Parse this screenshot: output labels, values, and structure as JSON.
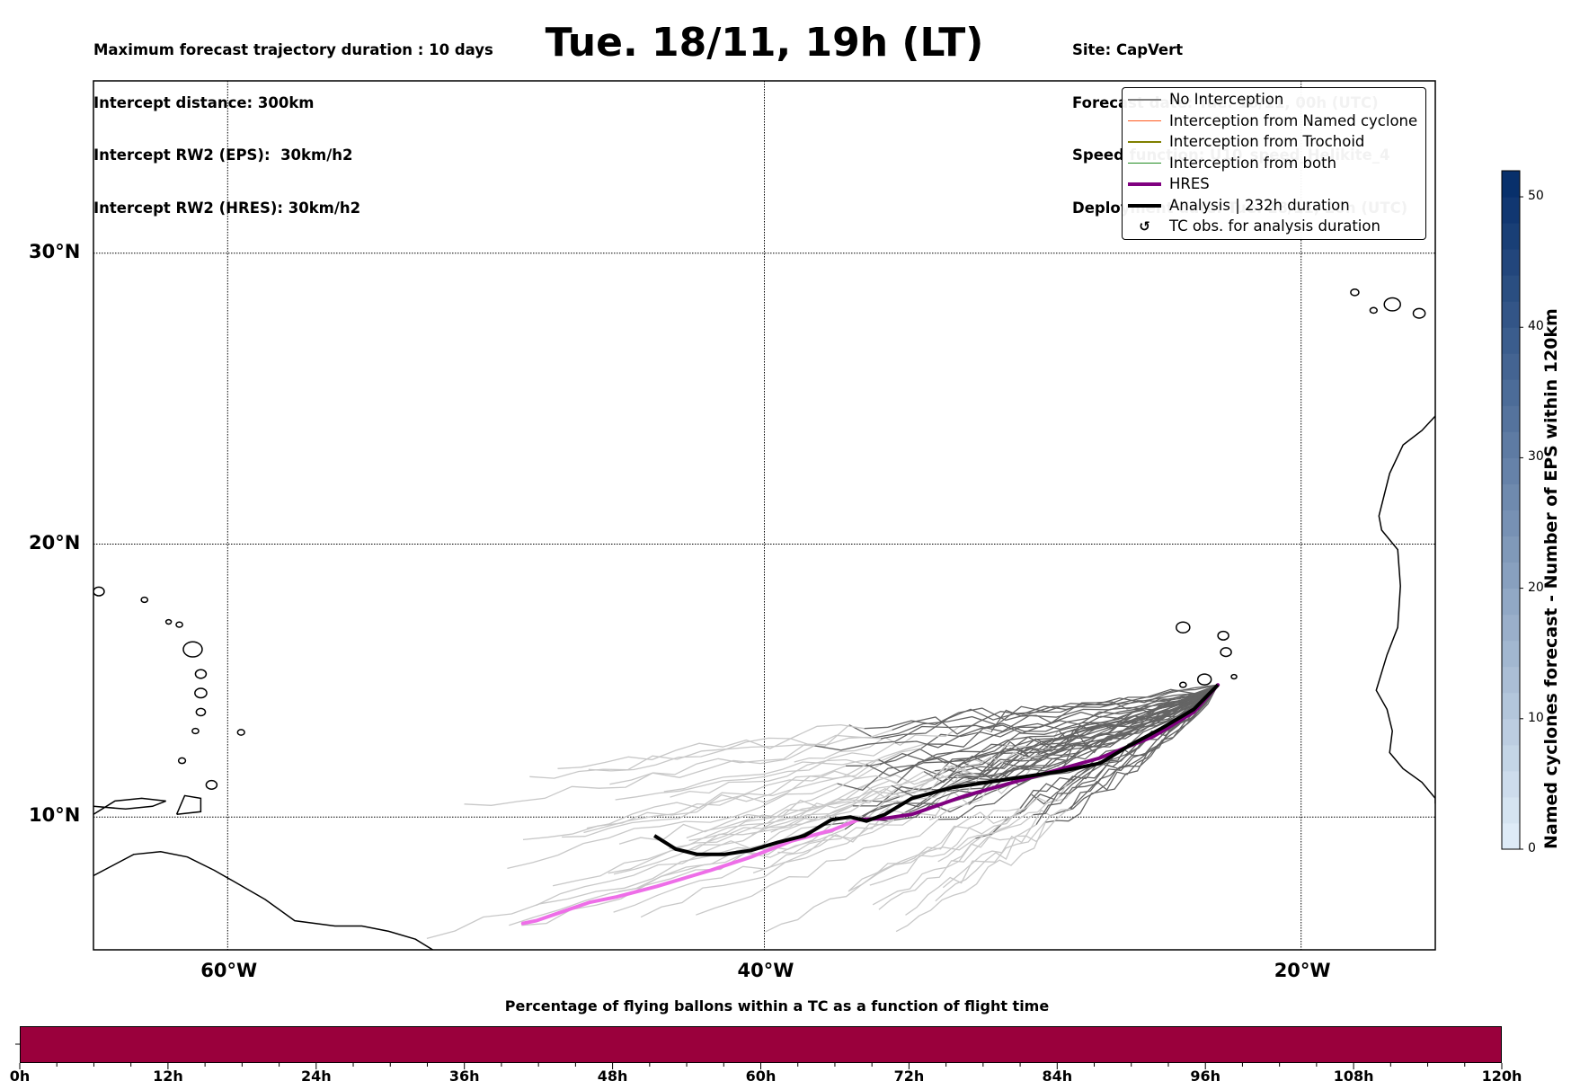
{
  "header": {
    "left_lines": [
      "Maximum forecast trajectory duration : 10 days",
      "Intercept distance: 300km",
      "Intercept RW2 (EPS):  30km/h2",
      "Intercept RW2 (HRES): 30km/h2"
    ],
    "title": "Tue. 18/11, 19h (LT)",
    "right_lines": [
      "Site: CapVert",
      "Forecast date: Tue. 18/11, 00h (UTC)",
      "Speed function: U10_speed_Helikite_4",
      "Deployment date: Tue. 18/11, 20h (UTC)"
    ]
  },
  "map": {
    "lon_range": [
      -65,
      -15
    ],
    "lat_range": [
      5.0,
      35.5
    ],
    "lon_ticks": [
      {
        "value": -60,
        "label": "60°W"
      },
      {
        "value": -40,
        "label": "40°W"
      },
      {
        "value": -20,
        "label": "20°W"
      }
    ],
    "lat_ticks": [
      {
        "value": 30,
        "label": "30°N"
      },
      {
        "value": 20,
        "label": "20°N"
      },
      {
        "value": 10,
        "label": "10°N"
      }
    ],
    "colors": {
      "no_interception": "#808080",
      "eps_light": "#c8c8c8",
      "eps_dark": "#646464",
      "named_cyclone": "#ff5a1e",
      "trochoid": "#808000",
      "both": "#228b22",
      "hres": "#800080",
      "hres_light": "#ee6ee8",
      "analysis": "#000000"
    },
    "launch_point": {
      "lon": -23.1,
      "lat": 14.9
    },
    "hres_track": [
      [
        -23.1,
        14.9
      ],
      [
        -24,
        13.9
      ],
      [
        -25.5,
        13.0
      ],
      [
        -27.5,
        12.2
      ],
      [
        -30,
        11.5
      ],
      [
        -32.5,
        10.8
      ],
      [
        -34.5,
        10.1
      ],
      [
        -35.5,
        9.95
      ],
      [
        -36.5,
        9.9
      ],
      [
        -37.5,
        9.5
      ],
      [
        -39,
        9.1
      ],
      [
        -40.5,
        8.5
      ],
      [
        -42,
        8.0
      ],
      [
        -44,
        7.4
      ],
      [
        -45.5,
        7.0
      ],
      [
        -46.5,
        6.8
      ],
      [
        -47.5,
        6.45
      ],
      [
        -48.5,
        6.1
      ],
      [
        -49,
        6.0
      ]
    ],
    "analysis_track": [
      [
        -23.1,
        14.9
      ],
      [
        -24,
        14.0
      ],
      [
        -25.2,
        13.3
      ],
      [
        -26.5,
        12.6
      ],
      [
        -27.5,
        12.0
      ],
      [
        -29,
        11.7
      ],
      [
        -31,
        11.4
      ],
      [
        -33,
        11.1
      ],
      [
        -34.5,
        10.7
      ],
      [
        -35.5,
        10.1
      ],
      [
        -36.2,
        9.85
      ],
      [
        -36.8,
        10.0
      ],
      [
        -37.5,
        9.9
      ],
      [
        -38.5,
        9.3
      ],
      [
        -39.5,
        9.05
      ],
      [
        -40.5,
        8.75
      ],
      [
        -41.5,
        8.6
      ],
      [
        -42.5,
        8.6
      ],
      [
        -43.3,
        8.8
      ],
      [
        -44.1,
        9.3
      ]
    ],
    "legend": [
      {
        "label": "No Interception",
        "kind": "thin",
        "color_key": "no_interception"
      },
      {
        "label": "Interception from Named cyclone",
        "kind": "thin",
        "color_key": "named_cyclone"
      },
      {
        "label": "Interception from Trochoid",
        "kind": "thin",
        "color_key": "trochoid"
      },
      {
        "label": "Interception from both",
        "kind": "thin",
        "color_key": "both"
      },
      {
        "label": "HRES",
        "kind": "thick",
        "color_key": "hres"
      },
      {
        "label": "Analysis | 232h duration",
        "kind": "thick",
        "color_key": "analysis"
      },
      {
        "label": "TC obs. for analysis duration",
        "kind": "marker",
        "marker": "↺"
      }
    ]
  },
  "colorbar": {
    "label": "Named cyclones forecast - Number of EPS within 120km",
    "range": [
      0,
      52
    ],
    "ticks": [
      0,
      10,
      20,
      30,
      40,
      50
    ],
    "color_low": "#deebf7",
    "color_high": "#08306b"
  },
  "flight_bar": {
    "title": "Percentage of flying ballons within a TC as a function of flight time",
    "color": "#9a003c",
    "hours_max": 120,
    "tick_labels": [
      "0h",
      "12h",
      "24h",
      "36h",
      "48h",
      "60h",
      "72h",
      "84h",
      "96h",
      "108h",
      "120h"
    ]
  }
}
